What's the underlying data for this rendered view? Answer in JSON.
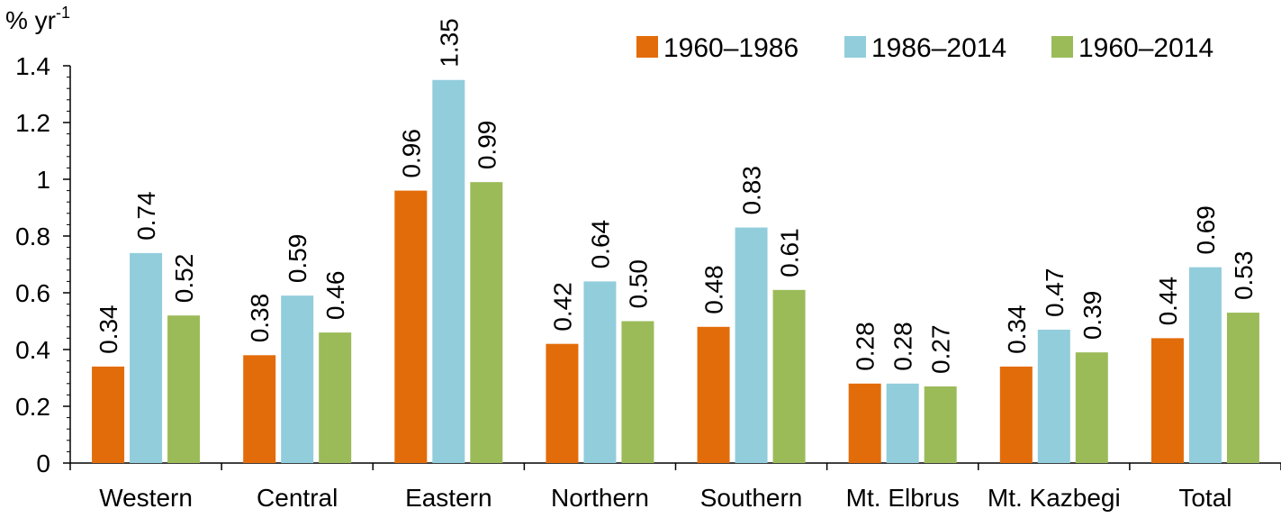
{
  "chart_data": {
    "type": "bar",
    "ylabel": "% yr",
    "ylabel_superscript": "-1",
    "ylim": [
      0,
      1.4
    ],
    "yticks": [
      "0",
      "0.2",
      "0.4",
      "0.6",
      "0.8",
      "1",
      "1.2",
      "1.4"
    ],
    "categories": [
      "Western",
      "Central",
      "Eastern",
      "Northern",
      "Southern",
      "Mt. Elbrus",
      "Mt. Kazbegi",
      "Total"
    ],
    "series": [
      {
        "name": "1960–1986",
        "color": "#E36C0A",
        "values": [
          0.34,
          0.38,
          0.96,
          0.42,
          0.48,
          0.28,
          0.34,
          0.44
        ],
        "labels": [
          "0.34",
          "0.38",
          "0.96",
          "0.42",
          "0.48",
          "0.28",
          "0.34",
          "0.44"
        ]
      },
      {
        "name": "1986–2014",
        "color": "#92CDDC",
        "values": [
          0.74,
          0.59,
          1.35,
          0.64,
          0.83,
          0.28,
          0.47,
          0.69
        ],
        "labels": [
          "0.74",
          "0.59",
          "1.35",
          "0.64",
          "0.83",
          "0.28",
          "0.47",
          "0.69"
        ]
      },
      {
        "name": "1960–2014",
        "color": "#9BBB59",
        "values": [
          0.52,
          0.46,
          0.99,
          0.5,
          0.61,
          0.27,
          0.39,
          0.53
        ],
        "labels": [
          "0.52",
          "0.46",
          "0.99",
          "0.50",
          "0.61",
          "0.27",
          "0.39",
          "0.53"
        ]
      }
    ],
    "legend_position": "top-right",
    "grid": false
  }
}
